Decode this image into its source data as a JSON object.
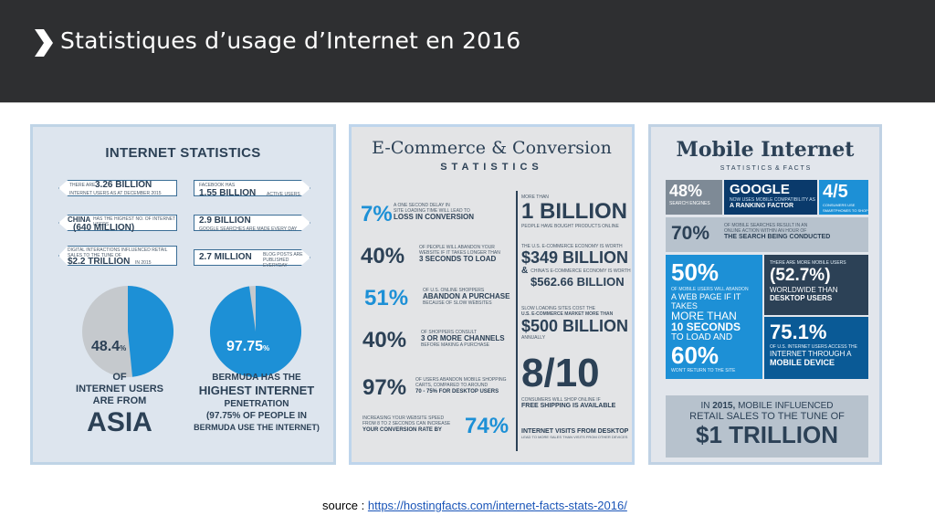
{
  "header": {
    "title": "Statistiques d’usage d’Internet en 2016"
  },
  "source": {
    "label": "source :",
    "url": "https://hostingfacts.com/internet-facts-stats-2016/"
  },
  "colors": {
    "header_bg": "#2e2f31",
    "accent_blue": "#1d90d6",
    "dark_navy": "#2c4156"
  },
  "internet": {
    "title": "INTERNET STATISTICS",
    "s1_pre": "THERE ARE",
    "s1_val": "3.26 BILLION",
    "s1_post": "INTERNET USERS AS AT DECEMBER 2015",
    "s2_pre": "FACEBOOK HAS",
    "s2_val": "1.55 BILLION",
    "s2_post": "ACTIVE USERS",
    "s3_pre": "CHINA",
    "s3_mid": "HAS THE HIGHEST NO. OF INTERNET USERS",
    "s3_val": "(640 MILLION)",
    "s4_val": "2.9 BILLION",
    "s4_post": "GOOGLE SEARCHES ARE MADE EVERY DAY",
    "s5_pre": "DIGITAL INTERACTIONS INFLUENCED RETAIL SALES TO THE TUNE OF",
    "s5_val": "$2.2 TRILLION",
    "s5_post": "IN 2015",
    "s6_val": "2.7 MILLION",
    "s6_post": "BLOG POSTS ARE PUBLISHED EVERYDAY",
    "pie1_val": "48.4",
    "pie1_unit": "%",
    "pie1_fraction": 0.484,
    "pie2_val": "97.75",
    "pie2_unit": "%",
    "pie2_fraction": 0.9775,
    "cap1_a": "OF",
    "cap1_b": "INTERNET USERS",
    "cap1_c": "ARE FROM",
    "cap1_d": "ASIA",
    "cap2_a": "BERMUDA HAS THE",
    "cap2_b": "HIGHEST INTERNET",
    "cap2_c": "PENETRATION",
    "cap2_d": "(97.75% OF PEOPLE IN",
    "cap2_e": "BERMUDA USE THE INTERNET)"
  },
  "ecommerce": {
    "title": "E-Commerce & Conversion",
    "subtitle": "STATISTICS",
    "l1_val": "7%",
    "l1_a": "A ONE SECOND DELAY IN",
    "l1_b": "SITE LOADING TIME WILL LEAD TO",
    "l1_c": "LOSS IN CONVERSION",
    "l2_val": "40%",
    "l2_a": "OF PEOPLE WILL ABANDON YOUR",
    "l2_b": "WEBSITE IF IT TAKES LONGER THAN",
    "l2_c": "3 SECONDS TO LOAD",
    "l3_val": "51%",
    "l3_a": "OF U.S. ONLINE SHOPPERS",
    "l3_b": "ABANDON A PURCHASE",
    "l3_c": "BECAUSE OF SLOW WEBSITES",
    "l4_val": "40%",
    "l4_a": "OF SHOPPERS CONSULT",
    "l4_b": "3 OR MORE CHANNELS",
    "l4_c": "BEFORE MAKING A PURCHASE",
    "l5_val": "97%",
    "l5_a": "OF USERS ABANDON MOBILE SHOPPING",
    "l5_b": "CARTS, COMPARED TO AROUND",
    "l5_c": "70 - 75% FOR DESKTOP USERS",
    "l6_a": "INCREASING YOUR WEBSITE SPEED",
    "l6_b": "FROM 8 TO 2 SECONDS CAN INCREASE",
    "l6_c": "YOUR CONVERSION RATE BY",
    "l6_val": "74%",
    "r1_a": "MORE THAN",
    "r1_val": "1 BILLION",
    "r1_b": "PEOPLE HAVE BOUGHT PRODUCTS ONLINE",
    "r2_a": "THE U.S. E-COMMERCE ECONOMY IS WORTH",
    "r2_val": "$349 BILLION",
    "r2_amp": "&",
    "r2_b": "CHINA'S E-COMMERCE ECONOMY IS WORTH",
    "r2_val2": "$562.66 BILLION",
    "r3_a": "SLOW LOADING SITES COST THE",
    "r3_b": "U.S. E-COMMERCE MARKET MORE THAN",
    "r3_val": "$500 BILLION",
    "r3_c": "ANNUALLY",
    "r4_val": "8/10",
    "r4_a": "CONSUMERS WILL SHOP ONLINE IF",
    "r4_b": "FREE SHIPPING IS AVAILABLE",
    "r5_a": "INTERNET VISITS FROM DESKTOP",
    "r5_b": "LEAD TO MORE SALES THAN VISITS FROM OTHER DEVICES"
  },
  "mobile": {
    "title": "Mobile Internet",
    "subtitle": "S T A T I S T I C S  &  F A C T S",
    "b1_val": "48%",
    "b1_sub": "SEARCH ENGINES",
    "b2_val": "GOOGLE",
    "b2_a": "NOW USES MOBILE COMPATIBILITY AS",
    "b2_b": "A RANKING FACTOR",
    "b3_val": "4/5",
    "b3_sub": "CONSUMERS USE SMARTPHONES TO SHOP",
    "b4_val": "70%",
    "b4_a": "OF MOBILE SEARCHES RESULT IN AN",
    "b4_b": "ONLINE ACTION WITHIN AN HOUR OF",
    "b4_c": "THE SEARCH BEING CONDUCTED",
    "b5_val": "50%",
    "b5_a": "OF MOBILE USERS WILL ABANDON",
    "b5_b": "A WEB PAGE IF IT TAKES",
    "b5_c": "MORE THAN",
    "b5_d": "10 SECONDS",
    "b5_e": "TO LOAD AND",
    "b5_val2": "60%",
    "b5_f": "WON'T RETURN TO THE SITE",
    "b6_a": "THERE ARE MORE MOBILE USERS",
    "b6_val": "(52.7%)",
    "b6_b": "WORLDWIDE THAN",
    "b6_c": "DESKTOP USERS",
    "b7_val": "75.1%",
    "b7_a": "OF U.S. INTERNET USERS ACCESS THE",
    "b7_b": "INTERNET THROUGH A",
    "b7_c": "MOBILE DEVICE",
    "b8_a": "IN",
    "b8_year": "2015,",
    "b8_b": "MOBILE INFLUENCED",
    "b8_c": "RETAIL SALES TO THE TUNE OF",
    "b8_val": "$1 TRILLION"
  }
}
